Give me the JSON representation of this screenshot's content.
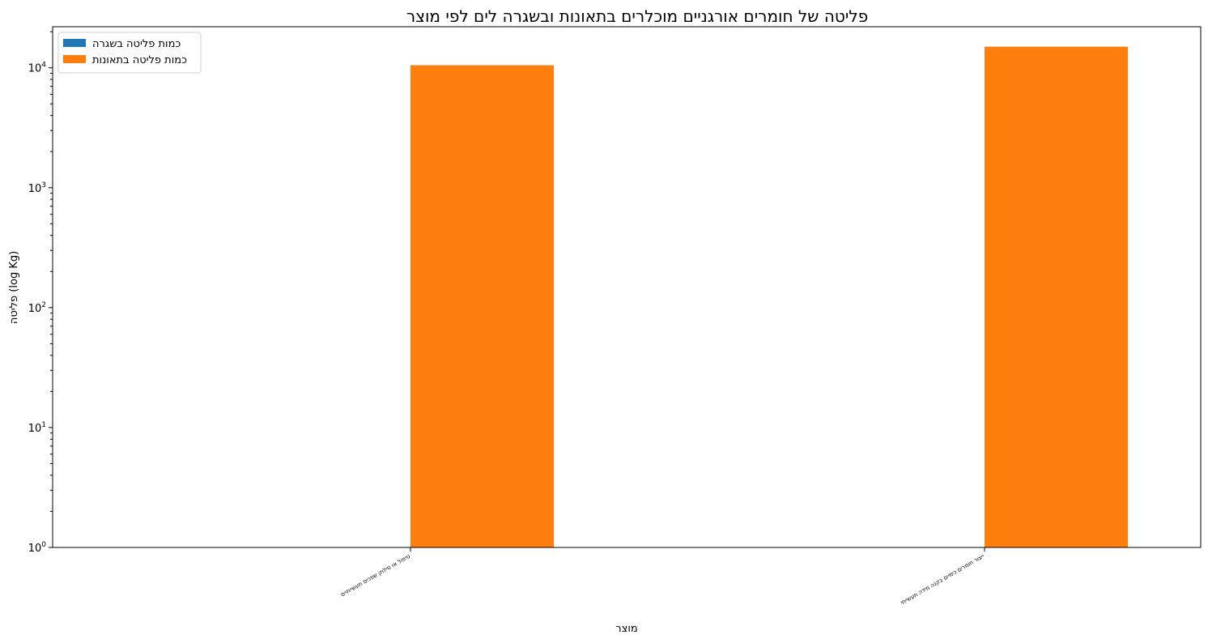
{
  "chart_data": {
    "type": "bar",
    "title": "פליטה של חומרים אורגניים מוכלרים בתאונות ובשגרה לים לפי מוצר",
    "xlabel": "מוצר",
    "ylabel": "פליטה (log Kg)",
    "y_scale": "log",
    "ylim": [
      1,
      22000
    ],
    "y_ticks": [
      {
        "value": 1,
        "base": "10",
        "exp": "0"
      },
      {
        "value": 10,
        "base": "10",
        "exp": "1"
      },
      {
        "value": 100,
        "base": "10",
        "exp": "2"
      },
      {
        "value": 1000,
        "base": "10",
        "exp": "3"
      },
      {
        "value": 10000,
        "base": "10",
        "exp": "4"
      }
    ],
    "categories": [
      "טיפול או סילוק שפכים תעשייתיים",
      "ייצור חומרים כימיים בקנה מידה תעשייתי"
    ],
    "series": [
      {
        "name": "כמות פליטה בשגרה",
        "color": "#1f77b4",
        "values": [
          0,
          0
        ]
      },
      {
        "name": "כמות פליטה בתאונות",
        "color": "#ff7f0e",
        "values": [
          10500,
          15000
        ]
      }
    ],
    "legend_position": "top-left",
    "grid": false
  }
}
